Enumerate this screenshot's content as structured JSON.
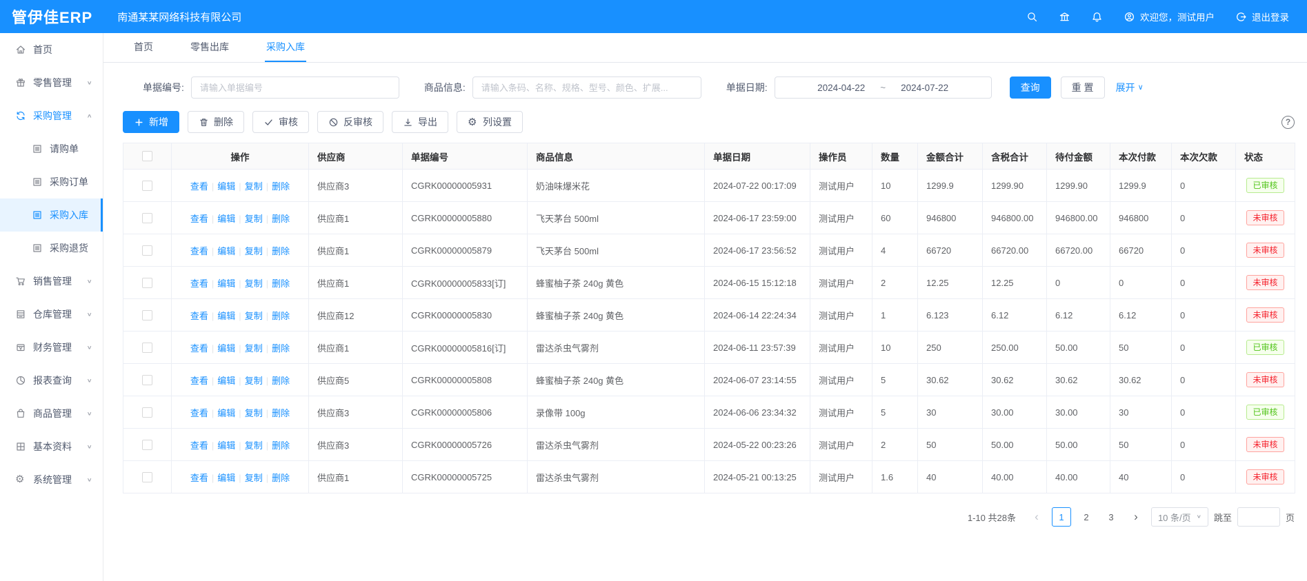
{
  "brand": {
    "logo": "管伊佳ERP",
    "company": "南通某某网络科技有限公司"
  },
  "header": {
    "welcome": "欢迎您，测试用户",
    "logout": "退出登录",
    "icons": [
      "search-icon",
      "bank-icon",
      "bell-icon"
    ]
  },
  "tabs": [
    {
      "key": "home",
      "label": "首页",
      "active": false
    },
    {
      "key": "retail-outbound",
      "label": "零售出库",
      "active": false
    },
    {
      "key": "purchase-inbound",
      "label": "采购入库",
      "active": true
    }
  ],
  "sidebar": {
    "items": [
      {
        "key": "home",
        "icon": "home-icon",
        "label": "首页",
        "type": "item"
      },
      {
        "key": "retail-mgmt",
        "icon": "gift-icon",
        "label": "零售管理",
        "type": "group",
        "chevron": "down"
      },
      {
        "key": "purchase-mgmt",
        "icon": "sync-icon",
        "label": "采购管理",
        "type": "group",
        "chevron": "up",
        "open": true
      },
      {
        "key": "purchase-request",
        "icon": "doc-icon",
        "label": "请购单",
        "type": "sub"
      },
      {
        "key": "purchase-order",
        "icon": "doc-icon",
        "label": "采购订单",
        "type": "sub"
      },
      {
        "key": "purchase-inbound",
        "icon": "doc-icon",
        "label": "采购入库",
        "type": "sub",
        "active": true
      },
      {
        "key": "purchase-return",
        "icon": "doc-icon",
        "label": "采购退货",
        "type": "sub"
      },
      {
        "key": "sales-mgmt",
        "icon": "cart-icon",
        "label": "销售管理",
        "type": "group",
        "chevron": "down"
      },
      {
        "key": "warehouse-mgmt",
        "icon": "warehouse-icon",
        "label": "仓库管理",
        "type": "group",
        "chevron": "down"
      },
      {
        "key": "finance-mgmt",
        "icon": "finance-icon",
        "label": "财务管理",
        "type": "group",
        "chevron": "down"
      },
      {
        "key": "report-query",
        "icon": "report-icon",
        "label": "报表查询",
        "type": "group",
        "chevron": "down"
      },
      {
        "key": "goods-mgmt",
        "icon": "goods-icon",
        "label": "商品管理",
        "type": "group",
        "chevron": "down"
      },
      {
        "key": "basic-data",
        "icon": "grid-icon",
        "label": "基本资料",
        "type": "group",
        "chevron": "down"
      },
      {
        "key": "system-mgmt",
        "icon": "gear-icon",
        "label": "系统管理",
        "type": "group",
        "chevron": "down"
      }
    ]
  },
  "filters": {
    "order_no_label": "单据编号:",
    "order_no_placeholder": "请输入单据编号",
    "product_label": "商品信息:",
    "product_placeholder": "请输入条码、名称、规格、型号、颜色、扩展...",
    "date_label": "单据日期:",
    "date_from": "2024-04-22",
    "date_sep": "~",
    "date_to": "2024-07-22",
    "search": "查询",
    "reset": "重 置",
    "expand": "展开"
  },
  "toolbar": [
    {
      "key": "add",
      "icon": "plus-icon",
      "label": "新增",
      "primary": true
    },
    {
      "key": "delete",
      "icon": "trash-icon",
      "label": "删除"
    },
    {
      "key": "audit",
      "icon": "check-icon",
      "label": "审核"
    },
    {
      "key": "unaudit",
      "icon": "ban-icon",
      "label": "反审核"
    },
    {
      "key": "export",
      "icon": "export-icon",
      "label": "导出"
    },
    {
      "key": "column-settings",
      "icon": "settings-icon",
      "label": "列设置"
    }
  ],
  "misc": {
    "help": "?"
  },
  "table": {
    "headers": [
      "操作",
      "供应商",
      "单据编号",
      "商品信息",
      "单据日期",
      "操作员",
      "数量",
      "金额合计",
      "含税合计",
      "待付金额",
      "本次付款",
      "本次欠款",
      "状态"
    ],
    "actions": [
      "查看",
      "编辑",
      "复制",
      "删除"
    ],
    "approved_text": "已审核",
    "rows": [
      {
        "supplier": "供应商3",
        "order_no": "CGRK00000005931",
        "product": "奶油味爆米花",
        "date": "2024-07-22 00:17:09",
        "operator": "测试用户",
        "qty": "10",
        "amount": "1299.9",
        "tax_total": "1299.90",
        "payable": "1299.90",
        "paid": "1299.9",
        "debt": "0",
        "status": "已审核"
      },
      {
        "supplier": "供应商1",
        "order_no": "CGRK00000005880",
        "product": "飞天茅台 500ml",
        "date": "2024-06-17 23:59:00",
        "operator": "测试用户",
        "qty": "60",
        "amount": "946800",
        "tax_total": "946800.00",
        "payable": "946800.00",
        "paid": "946800",
        "debt": "0",
        "status": "未审核"
      },
      {
        "supplier": "供应商1",
        "order_no": "CGRK00000005879",
        "product": "飞天茅台 500ml",
        "date": "2024-06-17 23:56:52",
        "operator": "测试用户",
        "qty": "4",
        "amount": "66720",
        "tax_total": "66720.00",
        "payable": "66720.00",
        "paid": "66720",
        "debt": "0",
        "status": "未审核"
      },
      {
        "supplier": "供应商1",
        "order_no": "CGRK00000005833[订]",
        "product": "蜂蜜柚子茶 240g 黄色",
        "date": "2024-06-15 15:12:18",
        "operator": "测试用户",
        "qty": "2",
        "amount": "12.25",
        "tax_total": "12.25",
        "payable": "0",
        "paid": "0",
        "debt": "0",
        "status": "未审核"
      },
      {
        "supplier": "供应商12",
        "order_no": "CGRK00000005830",
        "product": "蜂蜜柚子茶 240g 黄色",
        "date": "2024-06-14 22:24:34",
        "operator": "测试用户",
        "qty": "1",
        "amount": "6.123",
        "tax_total": "6.12",
        "payable": "6.12",
        "paid": "6.12",
        "debt": "0",
        "status": "未审核"
      },
      {
        "supplier": "供应商1",
        "order_no": "CGRK00000005816[订]",
        "product": "雷达杀虫气雾剂",
        "date": "2024-06-11 23:57:39",
        "operator": "测试用户",
        "qty": "10",
        "amount": "250",
        "tax_total": "250.00",
        "payable": "50.00",
        "paid": "50",
        "debt": "0",
        "status": "已审核"
      },
      {
        "supplier": "供应商5",
        "order_no": "CGRK00000005808",
        "product": "蜂蜜柚子茶 240g 黄色",
        "date": "2024-06-07 23:14:55",
        "operator": "测试用户",
        "qty": "5",
        "amount": "30.62",
        "tax_total": "30.62",
        "payable": "30.62",
        "paid": "30.62",
        "debt": "0",
        "status": "未审核"
      },
      {
        "supplier": "供应商3",
        "order_no": "CGRK00000005806",
        "product": "录像带 100g",
        "date": "2024-06-06 23:34:32",
        "operator": "测试用户",
        "qty": "5",
        "amount": "30",
        "tax_total": "30.00",
        "payable": "30.00",
        "paid": "30",
        "debt": "0",
        "status": "已审核"
      },
      {
        "supplier": "供应商3",
        "order_no": "CGRK00000005726",
        "product": "雷达杀虫气雾剂",
        "date": "2024-05-22 00:23:26",
        "operator": "测试用户",
        "qty": "2",
        "amount": "50",
        "tax_total": "50.00",
        "payable": "50.00",
        "paid": "50",
        "debt": "0",
        "status": "未审核"
      },
      {
        "supplier": "供应商1",
        "order_no": "CGRK00000005725",
        "product": "雷达杀虫气雾剂",
        "date": "2024-05-21 00:13:25",
        "operator": "测试用户",
        "qty": "1.6",
        "amount": "40",
        "tax_total": "40.00",
        "payable": "40.00",
        "paid": "40",
        "debt": "0",
        "status": "未审核"
      }
    ]
  },
  "pagination": {
    "summary": "1-10 共28条",
    "pages": [
      "1",
      "2",
      "3"
    ],
    "current": "1",
    "page_size": "10 条/页",
    "jump_label": "跳至",
    "page_label": "页"
  },
  "colors": {
    "primary": "#1890ff",
    "approved": "#52c41a",
    "unapproved": "#f5222d"
  }
}
